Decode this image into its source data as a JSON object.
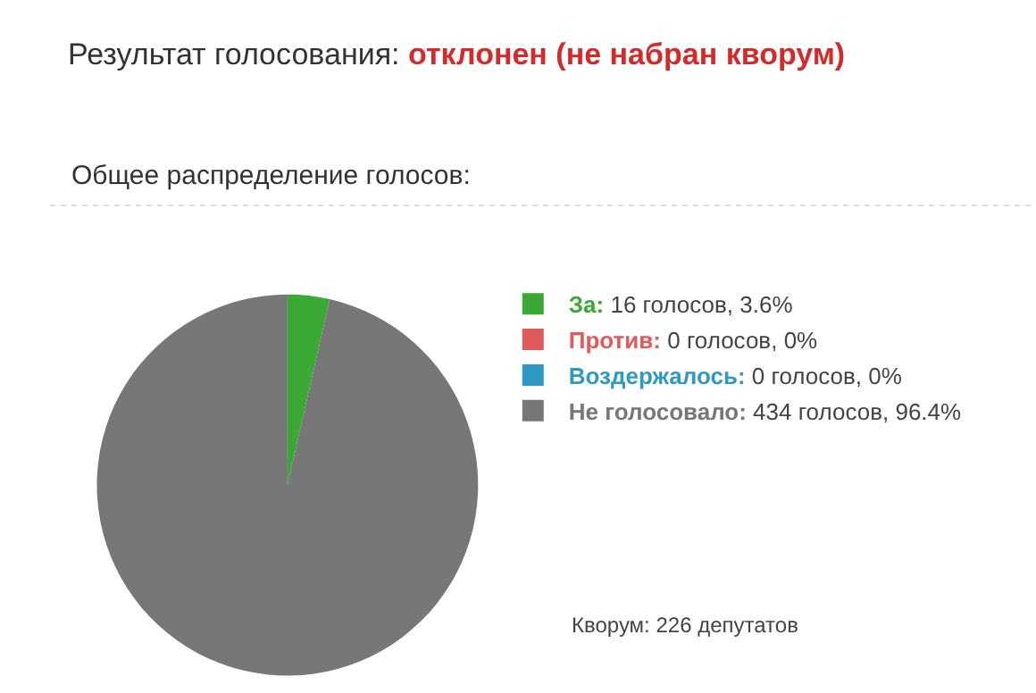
{
  "chart_data": {
    "type": "pie",
    "title": "Результат голосования: отклонен (не набран кворум)",
    "subtitle": "Общее распределение голосов:",
    "categories": [
      "За: 16 голосов, 3.6%",
      "Против: 0 голосов, 0%",
      "Воздержалось: 0 голосов, 0%",
      "Не голосовало: 434 голосов, 96.4%"
    ],
    "values": [
      16,
      0,
      0,
      434
    ],
    "colors": [
      "#3aaa35",
      "#e05a5a",
      "#2e9ac4",
      "#777777"
    ],
    "legend": "right",
    "annotations": [
      "Кворум: 226 депутатов"
    ]
  }
}
